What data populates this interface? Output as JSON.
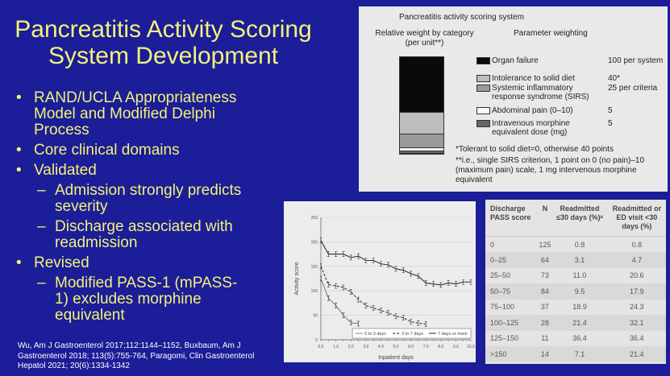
{
  "title": [
    "Pancreatitis Activity Scoring",
    "System Development"
  ],
  "bullets": {
    "b1": [
      "RAND/UCLA Appropriateness",
      "Model and Modified Delphi",
      "Process"
    ],
    "b2": "Core clinical domains",
    "b3": "Validated",
    "b3a": [
      "Admission strongly predicts",
      "severity"
    ],
    "b3b": [
      "Discharge associated with",
      "readmission"
    ],
    "b4": "Revised",
    "b4a": [
      "Modified PASS-1 (mPASS-",
      "1) excludes morphine",
      "equivalent"
    ]
  },
  "citation": [
    "Wu, Am J Gastroenterol 2017;112:1144–1152, Buxbaum, Am J",
    "Gastroenterol 2018; 113(5):755-764, Paragomi, Clin Gastroenterol",
    "Hepatol 2021; 20(6):1334-1342"
  ],
  "scoring": {
    "title": "Pancreatitis activity scoring system",
    "col1": [
      "Relative weight by category",
      "(per unit**)"
    ],
    "col2": "Parameter weighting",
    "params": [
      {
        "label": [
          "Organ failure"
        ],
        "value": "100 per system",
        "color": "#0a0a0a",
        "weight": 100
      },
      {
        "label": [
          "Intolerance to solid diet"
        ],
        "value": "40*",
        "color": "#bdbdbd",
        "weight": 40
      },
      {
        "label": [
          "Systemic inflammatory",
          "response syndrome (SIRS)"
        ],
        "value": "25 per criteria",
        "color": "#9a9a9a",
        "weight": 25
      },
      {
        "label": [
          "Abdominal pain (0–10)"
        ],
        "value": "5",
        "color": "#f8f8f8",
        "weight": 5
      },
      {
        "label": [
          "Intravenous morphine",
          "equivalent dose (mg)"
        ],
        "value": "5",
        "color": "#666666",
        "weight": 5
      }
    ],
    "footnotes": [
      "*Tolerant to solid diet=0, otherwise 40 points",
      "**i.e., single SIRS criterion, 1 point on 0 (no pain)–10",
      "(maximum pain) scale, 1 mg intervenous morphine",
      "equivalent"
    ]
  },
  "chart_data": {
    "type": "line",
    "xlabel": "Inpatient days",
    "ylabel": "Activity score",
    "xlim": [
      0,
      10
    ],
    "ylim": [
      0,
      250
    ],
    "xticks": [
      "0.0",
      "1.0",
      "2.0",
      "3.0",
      "4.0",
      "5.0",
      "6.0",
      "7.0",
      "8.0",
      "9.0",
      "10.0"
    ],
    "yticks": [
      "0",
      "50",
      "100",
      "150",
      "200",
      "250"
    ],
    "legend_position": "bottom-right",
    "series": [
      {
        "name": "0 to 3 days",
        "style": "thin",
        "x": [
          0,
          0.5,
          1,
          1.5,
          2,
          2.5
        ],
        "y": [
          125,
          85,
          70,
          50,
          35,
          33
        ]
      },
      {
        "name": "3 to 7 days",
        "style": "dashed",
        "x": [
          0,
          0.5,
          1,
          1.5,
          2,
          2.5,
          3,
          3.5,
          4,
          4.5,
          5,
          5.5,
          6,
          6.5,
          7
        ],
        "y": [
          150,
          113,
          110,
          107,
          98,
          82,
          70,
          65,
          60,
          55,
          48,
          45,
          37,
          34,
          32
        ]
      },
      {
        "name": "7 days or more",
        "style": "solid",
        "x": [
          0,
          0.5,
          1,
          1.5,
          2,
          2.5,
          3,
          3.5,
          4,
          4.5,
          5,
          5.5,
          6,
          6.5,
          7,
          7.5,
          8,
          8.5,
          9,
          9.5,
          10
        ],
        "y": [
          203,
          175,
          175,
          175,
          168,
          171,
          162,
          162,
          155,
          153,
          145,
          142,
          135,
          130,
          116,
          114,
          112,
          116,
          114,
          118,
          118
        ]
      }
    ]
  },
  "table": {
    "headers": [
      [
        "Discharge",
        "PASS score"
      ],
      [
        "N"
      ],
      [
        "Readmitted",
        "≤30 days (%)ᵃ"
      ],
      [
        "Readmitted or",
        "ED visit <30",
        "days (%)"
      ]
    ],
    "rows": [
      [
        "0",
        "125",
        "0.8",
        "0.8"
      ],
      [
        "0–25",
        "64",
        "3.1",
        "4.7"
      ],
      [
        "25–50",
        "73",
        "11.0",
        "20.6"
      ],
      [
        "50–75",
        "84",
        "9.5",
        "17.9"
      ],
      [
        "75–100",
        "37",
        "18.9",
        "24.3"
      ],
      [
        "100–125",
        "28",
        "21.4",
        "32.1"
      ],
      [
        "125–150",
        "11",
        "36.4",
        "36.4"
      ],
      [
        ">150",
        "14",
        "7.1",
        "21.4"
      ]
    ]
  }
}
